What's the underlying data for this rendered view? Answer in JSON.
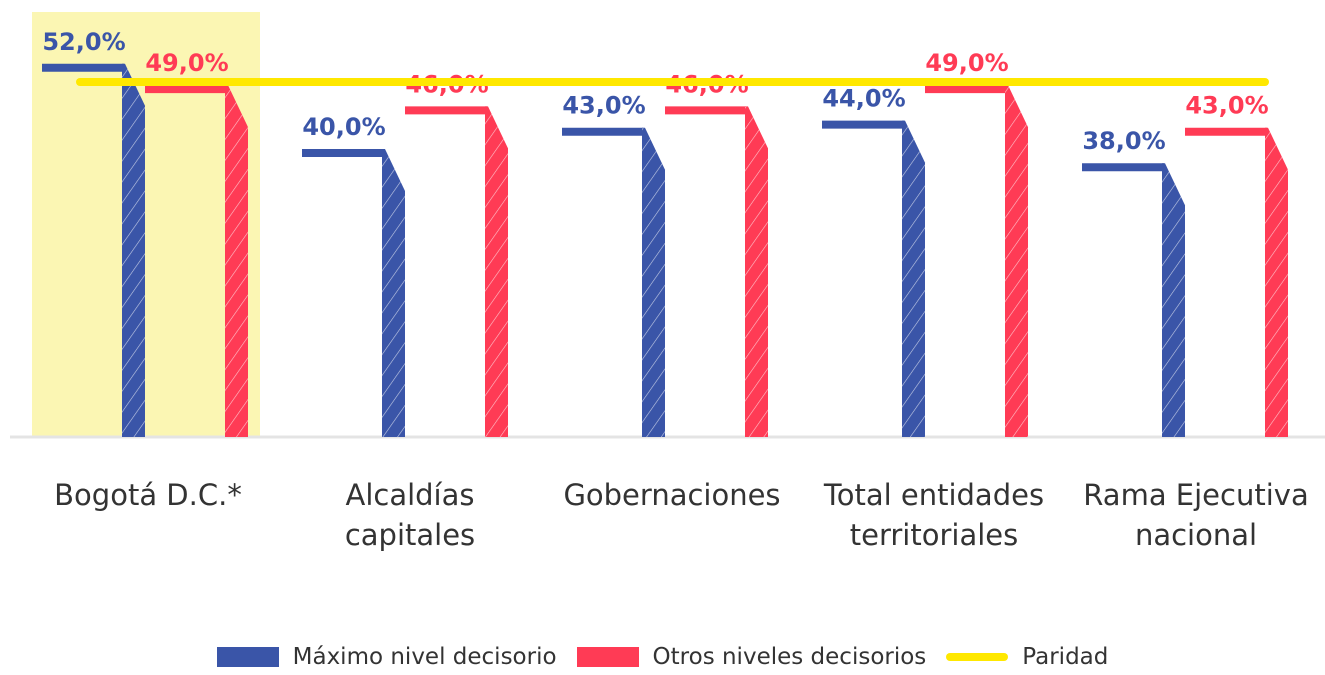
{
  "chart_data": {
    "type": "bar",
    "categories": [
      "Bogotá D.C.*",
      "Alcaldías capitales",
      "Gobernaciones",
      "Total entidades territoriales",
      "Rama Ejecutiva nacional"
    ],
    "series": [
      {
        "name": "Máximo nivel decisorio",
        "color": "#3a55a8",
        "values": [
          52,
          40,
          43,
          44,
          38
        ],
        "value_labels": [
          "52,0%",
          "40,0%",
          "43,0%",
          "44,0%",
          "38,0%"
        ]
      },
      {
        "name": "Otros niveles decisorios",
        "color": "#ff3b55",
        "values": [
          49,
          46,
          46,
          49,
          43
        ],
        "value_labels": [
          "49,0%",
          "46,0%",
          "46,0%",
          "49,0%",
          "43,0%"
        ]
      },
      {
        "name": "Paridad",
        "type": "line",
        "color": "#ffe800",
        "values": [
          50,
          50,
          50,
          50,
          50
        ]
      }
    ],
    "ylim": [
      0,
      60
    ]
  }
}
